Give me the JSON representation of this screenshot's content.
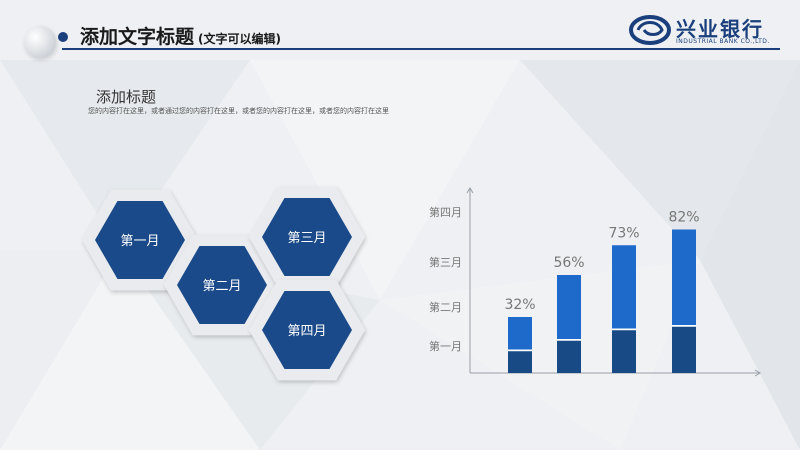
{
  "header": {
    "title": "添加文字标题",
    "subtitle": "(文字可以编辑)",
    "logo_text": "兴业银行",
    "logo_subtext": "INDUSTRIAL BANK CO.,LTD."
  },
  "section": {
    "title": "添加标题",
    "description": "您的内容打在这里，或者通过您的内容打在这里，或者您的内容打在这里，或者您的内容打在这里"
  },
  "hexagons": [
    {
      "label": "第一月"
    },
    {
      "label": "第二月"
    },
    {
      "label": "第三月"
    },
    {
      "label": "第四月"
    }
  ],
  "colors": {
    "dark_blue": "#1a4a8a",
    "bar_top": "#1e6acb",
    "bar_bottom": "#184a86",
    "axis": "#9aa0a8"
  },
  "chart_data": {
    "type": "bar",
    "stacked": true,
    "categories": [
      "",
      "",
      "",
      ""
    ],
    "y_tick_labels": [
      "第一月",
      "第二月",
      "第三月",
      "第四月"
    ],
    "data_labels": [
      "32%",
      "56%",
      "73%",
      "82%"
    ],
    "values": [
      32,
      56,
      73,
      82
    ],
    "series": [
      {
        "values": [
          13,
          19,
          25,
          27
        ]
      },
      {
        "values": [
          19,
          37,
          48,
          55
        ]
      }
    ],
    "ylim": [
      0,
      100
    ],
    "legend": "none",
    "grid": false
  }
}
